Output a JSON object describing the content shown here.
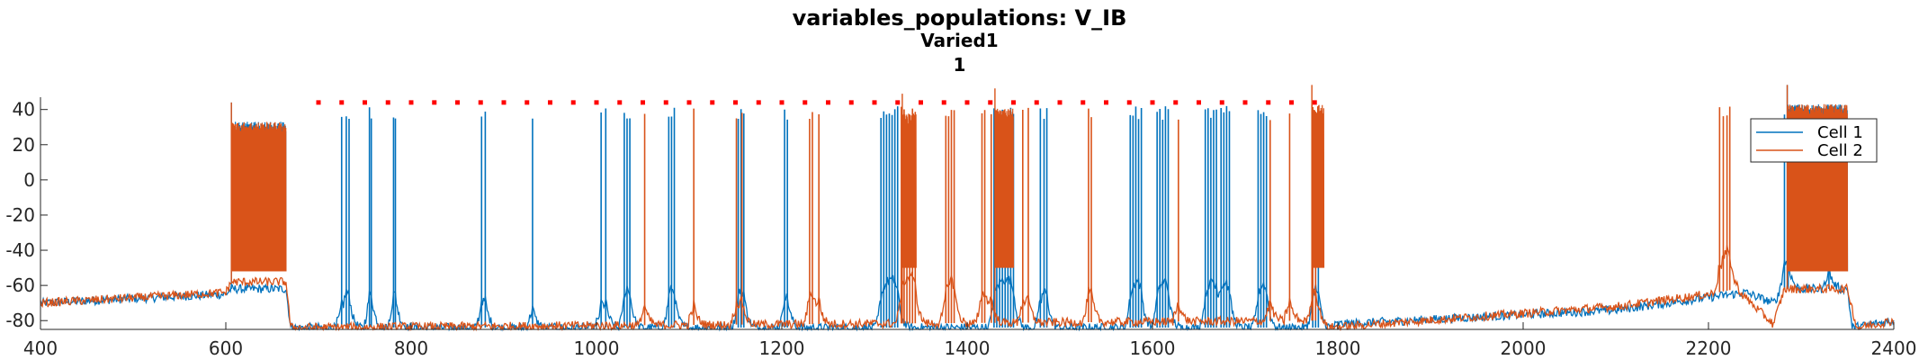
{
  "title": "variables_populations: V_IB",
  "subtitle": "Varied1",
  "subtitle2": "1",
  "chart_data": {
    "type": "line",
    "title": "variables_populations: V_IB",
    "subtitle": [
      "Varied1",
      "1"
    ],
    "xlabel": "",
    "ylabel": "",
    "xlim": [
      400,
      2400
    ],
    "ylim": [
      -85,
      47
    ],
    "x_ticks": [
      400,
      600,
      800,
      1000,
      1200,
      1400,
      1600,
      1800,
      2000,
      2200,
      2400
    ],
    "y_ticks": [
      -80,
      -60,
      -40,
      -20,
      0,
      20,
      40
    ],
    "grid": false,
    "legend": "top-right",
    "colors": {
      "Cell 1": "#0072BD",
      "Cell 2": "#D95319",
      "markers": "#FF0000"
    },
    "series": [
      {
        "name": "Cell 1",
        "baseline": [
          [
            400,
            -70
          ],
          [
            600,
            -65
          ],
          [
            606,
            -62
          ],
          [
            665,
            -62
          ],
          [
            670,
            -84
          ],
          [
            1790,
            -84
          ],
          [
            1800,
            -82
          ],
          [
            2100,
            -74
          ],
          [
            2240,
            -64
          ],
          [
            2270,
            -70
          ],
          [
            2280,
            -62
          ],
          [
            2350,
            -62
          ],
          [
            2355,
            -84
          ],
          [
            2400,
            -80
          ]
        ],
        "spikes": [
          725,
          730,
          733,
          755,
          757,
          781,
          783,
          876,
          880,
          931,
          1005,
          1010,
          1030,
          1033,
          1036,
          1078,
          1081,
          1084,
          1153,
          1156,
          1159,
          1203,
          1206,
          1307,
          1310,
          1313,
          1316,
          1319,
          1322,
          1325,
          1429,
          1432,
          1435,
          1438,
          1441,
          1444,
          1447,
          1450,
          1479,
          1483,
          1486,
          1576,
          1579,
          1582,
          1585,
          1588,
          1605,
          1608,
          1611,
          1614,
          1617,
          1657,
          1660,
          1663,
          1666,
          1669,
          1674,
          1677,
          1680,
          1683,
          1714,
          1717,
          1720,
          1723,
          1773,
          1776,
          1779,
          2282,
          2286,
          2330
        ],
        "burst": [
          [
            606,
            665,
            -52,
            30
          ],
          [
            2285,
            2350,
            -52,
            40
          ]
        ]
      },
      {
        "name": "Cell 2",
        "baseline": [
          [
            400,
            -70
          ],
          [
            600,
            -64
          ],
          [
            606,
            -58
          ],
          [
            665,
            -58
          ],
          [
            670,
            -84
          ],
          [
            1780,
            -80
          ],
          [
            1790,
            -84
          ],
          [
            2100,
            -72
          ],
          [
            2200,
            -65
          ],
          [
            2230,
            -62
          ],
          [
            2250,
            -72
          ],
          [
            2270,
            -82
          ],
          [
            2282,
            -62
          ],
          [
            2350,
            -62
          ],
          [
            2360,
            -84
          ],
          [
            2400,
            -80
          ]
        ],
        "spikes": [
          1052,
          1105,
          1151,
          1157,
          1230,
          1233,
          1240,
          1329,
          1332,
          1335,
          1338,
          1341,
          1344,
          1377,
          1380,
          1383,
          1386,
          1416,
          1419,
          1426,
          1460,
          1466,
          1531,
          1534,
          1628,
          1727,
          1748,
          1773,
          1776,
          2212,
          2216,
          2220,
          2223
        ],
        "burst": [
          [
            606,
            665,
            -52,
            30
          ],
          [
            2285,
            2350,
            -52,
            40
          ],
          [
            1430,
            1450,
            -50,
            38
          ],
          [
            1330,
            1345,
            -50,
            35
          ],
          [
            1772,
            1785,
            -50,
            40
          ]
        ]
      }
    ],
    "markers": {
      "y": 44,
      "x_start": 700,
      "x_end": 1775,
      "step": 25
    }
  },
  "legend": {
    "items": [
      "Cell 1",
      "Cell 2"
    ]
  }
}
